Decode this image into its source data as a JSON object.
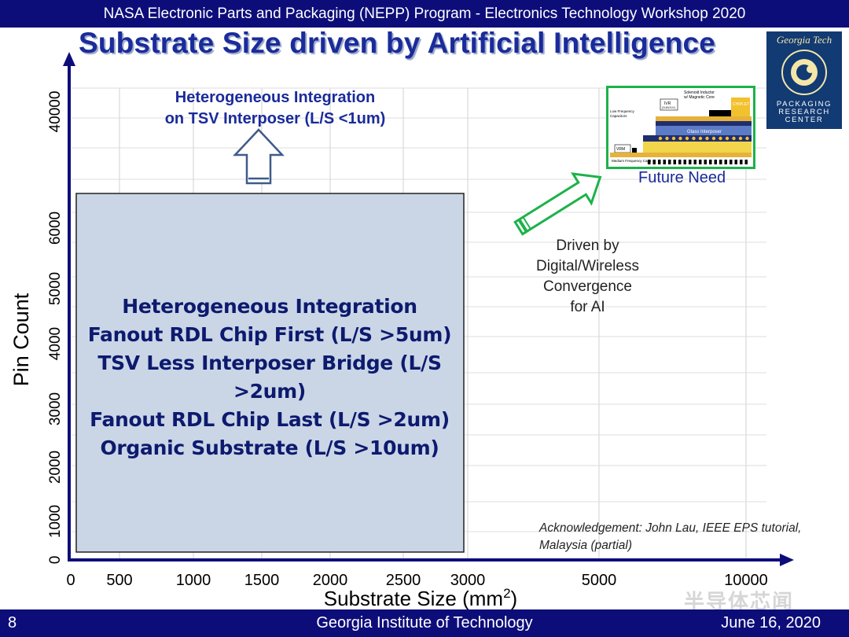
{
  "header": {
    "banner": "NASA Electronic Parts and Packaging (NEPP) Program - Electronics Technology Workshop 2020",
    "title": "Substrate Size driven by Artificial Intelligence"
  },
  "logo": {
    "top_text": "Georgia Tech",
    "bottom_text": [
      "PACKAGING",
      "RESEARCH",
      "CENTER"
    ]
  },
  "chart_data": {
    "type": "area",
    "x": {
      "label": "Substrate Size (mm",
      "label_sup": "2",
      "label_close": ")",
      "ticks": [
        "0",
        "500",
        "1000",
        "1500",
        "2000",
        "2500",
        "3000",
        "5000",
        "10000"
      ]
    },
    "y": {
      "label": "Pin Count",
      "ticks": [
        "0",
        "1000",
        "2000",
        "3000",
        "4000",
        "5000",
        "6000",
        "40000"
      ]
    },
    "grid": true,
    "regions": [
      {
        "name": "current",
        "x_range": [
          0,
          3000
        ],
        "y_range": [
          0,
          6500
        ],
        "lines": [
          "Heterogeneous Integration",
          "Fanout RDL Chip First (L/S >5um)",
          "TSV Less Interposer Bridge (L/S >2um)",
          "Fanout RDL Chip Last (L/S >2um)",
          "Organic Substrate (L/S >10um)"
        ]
      }
    ],
    "annotations": {
      "tsv": [
        "Heterogeneous Integration",
        "on TSV Interposer (L/S <1um)"
      ],
      "future_need": "Future Need",
      "driven_by": [
        "Driven by",
        "Digital/Wireless",
        "Convergence",
        "for AI"
      ],
      "acknowledgement": "Acknowledgement: John Lau, IEEE EPS tutorial, Malaysia (partial)"
    }
  },
  "future_diagram": {
    "labels": [
      "Solenoid Inductor",
      "w/ Magnetic Core",
      "IVR",
      "(3.6V/1V)",
      "CHIPLET",
      "Low Frequency",
      "Capacitors",
      "Glass Interposer",
      "VRM",
      "Medium Frequency Caps"
    ],
    "colors": {
      "chiplet": "#f2c12e",
      "interposer": "#5b7bc6",
      "substrate": "#e6b23a",
      "core": "#1f2e6e"
    }
  },
  "footer": {
    "page": "8",
    "institution": "Georgia Institute of Technology",
    "date": "June 16, 2020"
  },
  "watermark": "半导体芯闻",
  "colors": {
    "navy": "#0d0d7a",
    "title_blue": "#1a2b9a",
    "region_fill": "#cad6e6",
    "arrow_green": "#1db24a"
  }
}
